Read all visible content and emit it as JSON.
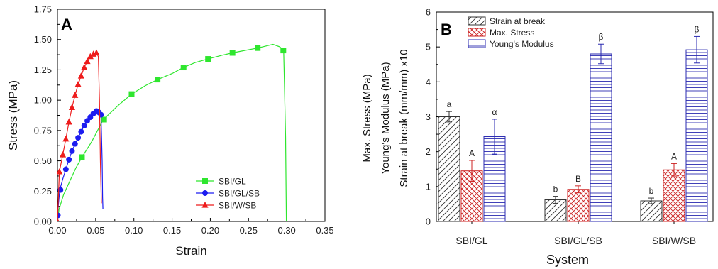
{
  "chart_data": [
    {
      "panel": "A",
      "type": "line",
      "xlabel": "Strain",
      "ylabel": "Stress (MPa)",
      "xlim": [
        0,
        0.35
      ],
      "ylim": [
        0,
        1.75
      ],
      "xticks": [
        "0.00",
        "0.05",
        "0.10",
        "0.15",
        "0.20",
        "0.25",
        "0.30",
        "0.35"
      ],
      "yticks": [
        "0.00",
        "0.25",
        "0.50",
        "0.75",
        "1.00",
        "1.25",
        "1.50",
        "1.75"
      ],
      "legend_position": "bottom-right",
      "series": [
        {
          "name": "SBI/GL",
          "color": "#2ee62e",
          "marker": "square",
          "x": [
            0,
            0.002,
            0.008,
            0.016,
            0.024,
            0.032,
            0.045,
            0.06,
            0.08,
            0.097,
            0.115,
            0.131,
            0.15,
            0.165,
            0.18,
            0.197,
            0.215,
            0.229,
            0.245,
            0.262,
            0.275,
            0.282,
            0.291,
            0.296,
            0.2985,
            0.2995
          ],
          "y": [
            0,
            0.1,
            0.22,
            0.33,
            0.44,
            0.53,
            0.66,
            0.84,
            0.96,
            1.05,
            1.12,
            1.17,
            1.22,
            1.27,
            1.31,
            1.34,
            1.37,
            1.39,
            1.41,
            1.43,
            1.45,
            1.46,
            1.44,
            1.41,
            0.7,
            0.0
          ],
          "marker_x": [
            0.032,
            0.061,
            0.097,
            0.131,
            0.165,
            0.197,
            0.229,
            0.262,
            0.2955
          ],
          "marker_y": [
            0.53,
            0.84,
            1.05,
            1.17,
            1.27,
            1.34,
            1.39,
            1.43,
            1.41
          ]
        },
        {
          "name": "SBI/GL/SB",
          "color": "#1c1cf0",
          "marker": "circle",
          "x": [
            0,
            0.003,
            0.007,
            0.011,
            0.015,
            0.019,
            0.023,
            0.027,
            0.031,
            0.035,
            0.039,
            0.043,
            0.047,
            0.051,
            0.054,
            0.057,
            0.0585,
            0.059,
            0.0595
          ],
          "y": [
            0.05,
            0.26,
            0.35,
            0.43,
            0.51,
            0.58,
            0.64,
            0.69,
            0.74,
            0.79,
            0.83,
            0.86,
            0.89,
            0.91,
            0.9,
            0.88,
            0.5,
            0.2,
            0.1
          ],
          "marker_x": [
            0.0005,
            0.004,
            0.011,
            0.015,
            0.019,
            0.023,
            0.027,
            0.031,
            0.035,
            0.039,
            0.043,
            0.047,
            0.051,
            0.054,
            0.057
          ],
          "marker_y": [
            0.05,
            0.26,
            0.43,
            0.51,
            0.58,
            0.64,
            0.69,
            0.74,
            0.79,
            0.83,
            0.86,
            0.89,
            0.91,
            0.9,
            0.88
          ]
        },
        {
          "name": "SBI/W/SB",
          "color": "#ee1c1c",
          "marker": "triangle",
          "x": [
            0,
            0.0025,
            0.007,
            0.011,
            0.015,
            0.019,
            0.023,
            0.027,
            0.031,
            0.035,
            0.039,
            0.043,
            0.047,
            0.051,
            0.0535,
            0.055,
            0.0562,
            0.0575
          ],
          "y": [
            0,
            0.41,
            0.55,
            0.68,
            0.82,
            0.94,
            1.04,
            1.13,
            1.2,
            1.27,
            1.32,
            1.36,
            1.38,
            1.39,
            1.36,
            1.0,
            0.5,
            0.15
          ],
          "marker_x": [
            0,
            0.0025,
            0.007,
            0.011,
            0.015,
            0.019,
            0.023,
            0.027,
            0.031,
            0.035,
            0.039,
            0.043,
            0.047,
            0.051
          ],
          "marker_y": [
            0,
            0.41,
            0.55,
            0.68,
            0.82,
            0.94,
            1.04,
            1.13,
            1.2,
            1.27,
            1.32,
            1.36,
            1.38,
            1.39
          ]
        }
      ]
    },
    {
      "panel": "B",
      "type": "bar",
      "xlabel": "System",
      "ylabel_lines": [
        "Max. Stress (MPa)",
        "Young's Modulus (MPa)",
        "Strain at break (mm/mm) x10"
      ],
      "ylim": [
        0,
        6
      ],
      "yticks": [
        "0",
        "1",
        "2",
        "3",
        "4",
        "5",
        "6"
      ],
      "categories": [
        "SBI/GL",
        "SBI/GL/SB",
        "SBI/W/SB"
      ],
      "legend_position": "top-left",
      "series": [
        {
          "name": "Strain at break",
          "color": "#333333",
          "pattern": "diagonal",
          "values": [
            3.0,
            0.62,
            0.59
          ],
          "errors": [
            0.15,
            0.1,
            0.08
          ],
          "labels": [
            "a",
            "b",
            "b"
          ]
        },
        {
          "name": "Max. Stress",
          "color": "#cc2222",
          "pattern": "crosshatch",
          "values": [
            1.45,
            0.92,
            1.48
          ],
          "errors": [
            0.3,
            0.1,
            0.18
          ],
          "labels": [
            "A",
            "B",
            "A"
          ]
        },
        {
          "name": "Young's Modulus",
          "color": "#2a2ab0",
          "pattern": "horizontal",
          "values": [
            2.43,
            4.8,
            4.92
          ],
          "errors": [
            0.5,
            0.28,
            0.38
          ],
          "labels": [
            "α",
            "β",
            "β"
          ]
        }
      ]
    }
  ]
}
